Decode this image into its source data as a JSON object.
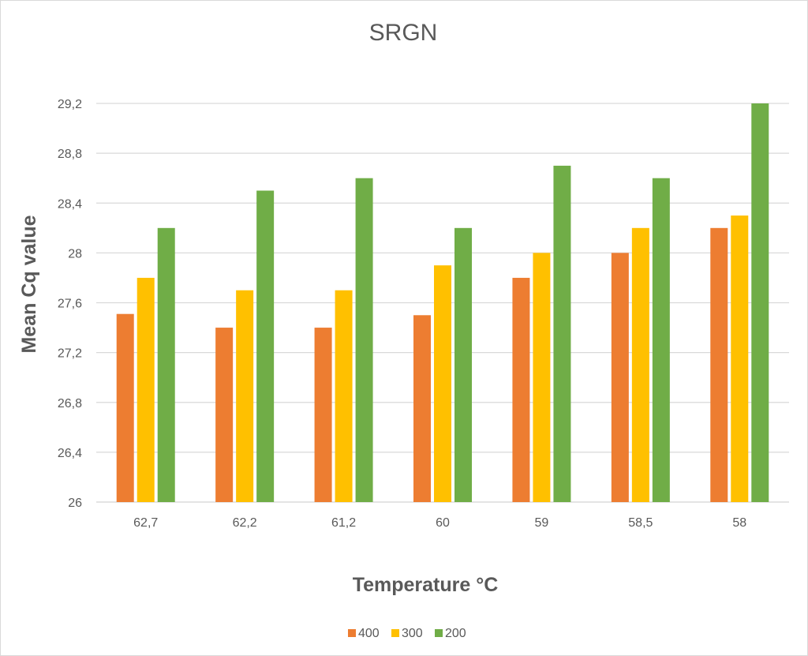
{
  "chart_data": {
    "type": "bar",
    "title": "SRGN",
    "xlabel": "Temperature °C",
    "ylabel": "Mean Cq value",
    "categories": [
      "62,7",
      "62,2",
      "61,2",
      "60",
      "59",
      "58,5",
      "58"
    ],
    "series": [
      {
        "name": "400",
        "color": "#ed7d31",
        "values": [
          27.51,
          27.4,
          27.4,
          27.5,
          27.8,
          28.0,
          28.2
        ]
      },
      {
        "name": "300",
        "color": "#ffc000",
        "values": [
          27.8,
          27.7,
          27.7,
          27.9,
          28.0,
          28.2,
          28.3
        ]
      },
      {
        "name": "200",
        "color": "#70ad47",
        "values": [
          28.2,
          28.5,
          28.6,
          28.2,
          28.7,
          28.6,
          29.2
        ]
      }
    ],
    "ylim": [
      26,
      29.2
    ],
    "yticks": [
      26,
      26.4,
      26.8,
      27.2,
      27.6,
      28,
      28.4,
      28.8,
      29.2
    ],
    "ytick_labels": [
      "26",
      "26,4",
      "26,8",
      "27,2",
      "27,6",
      "28",
      "28,4",
      "28,8",
      "29,2"
    ],
    "grid": true,
    "legend_position": "bottom"
  }
}
